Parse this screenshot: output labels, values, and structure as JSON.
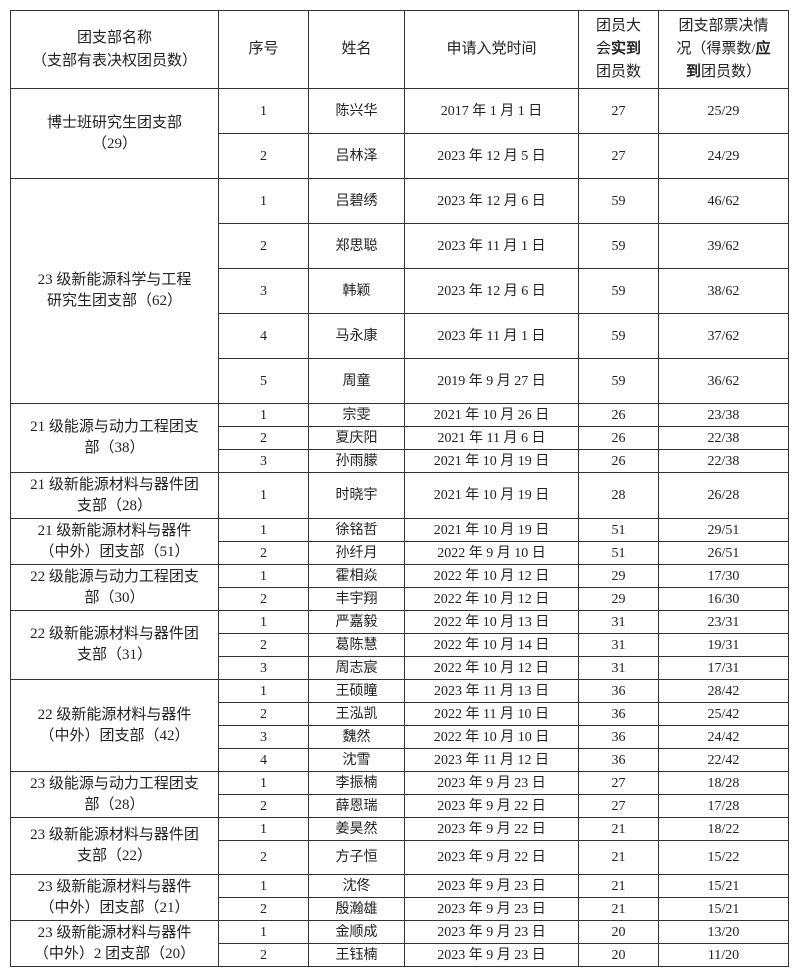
{
  "header": [
    [
      [
        {
          "text": "团支部名称"
        }
      ],
      [
        {
          "text": "（支部有表决权团员数）"
        }
      ]
    ],
    [
      [
        {
          "text": "序号"
        }
      ]
    ],
    [
      [
        {
          "text": "姓名"
        }
      ]
    ],
    [
      [
        {
          "text": "申请入党时间"
        }
      ]
    ],
    [
      [
        {
          "text": "团员大"
        }
      ],
      [
        {
          "text": "会"
        },
        {
          "text": "实到",
          "bold": true
        }
      ],
      [
        {
          "text": "团员数"
        }
      ]
    ],
    [
      [
        {
          "text": "团支部票决情"
        }
      ],
      [
        {
          "text": "况（得票数/"
        },
        {
          "text": "应",
          "bold": true
        }
      ],
      [
        {
          "text": "到",
          "bold": true
        },
        {
          "text": "团员数）"
        }
      ]
    ]
  ],
  "groups": [
    {
      "name": [
        "博士班研究生团支部",
        "（29）"
      ],
      "rows": [
        [
          1,
          "陈兴华",
          "2017 年 1 月 1 日",
          27,
          "25/29"
        ],
        [
          2,
          "吕林泽",
          "2023 年 12 月 5 日",
          27,
          "24/29"
        ]
      ]
    },
    {
      "name": [
        "23 级新能源科学与工程",
        "研究生团支部（62）"
      ],
      "rows": [
        [
          1,
          "吕碧绣",
          "2023 年 12 月 6 日",
          59,
          "46/62"
        ],
        [
          2,
          "郑思聪",
          "2023 年 11 月 1 日",
          59,
          "39/62"
        ],
        [
          3,
          "韩颖",
          "2023 年 12 月 6 日",
          59,
          "38/62"
        ],
        [
          4,
          "马永康",
          "2023 年 11 月 1 日",
          59,
          "37/62"
        ],
        [
          5,
          "周童",
          "2019 年 9 月 27 日",
          59,
          "36/62"
        ]
      ]
    },
    {
      "name": [
        "21 级能源与动力工程团支",
        "部（38）"
      ],
      "rows": [
        [
          1,
          "宗雯",
          "2021 年 10 月 26 日",
          26,
          "23/38"
        ],
        [
          2,
          "夏庆阳",
          "2021 年 11 月 6 日",
          26,
          "22/38"
        ],
        [
          3,
          "孙雨朦",
          "2021 年 10 月 19 日",
          26,
          "22/38"
        ]
      ]
    },
    {
      "name": [
        "21 级新能源材料与器件团",
        "支部（28）"
      ],
      "rows": [
        [
          1,
          "时晓宇",
          "2021 年 10 月 19 日",
          28,
          "26/28"
        ]
      ]
    },
    {
      "name": [
        "21 级新能源材料与器件",
        "（中外）团支部（51）"
      ],
      "rows": [
        [
          1,
          "徐铭哲",
          "2021 年 10 月 19 日",
          51,
          "29/51"
        ],
        [
          2,
          "孙纤月",
          "2022 年 9 月 10 日",
          51,
          "26/51"
        ]
      ]
    },
    {
      "name": [
        "22 级能源与动力工程团支",
        "部（30）"
      ],
      "rows": [
        [
          1,
          "霍相焱",
          "2022 年 10 月 12 日",
          29,
          "17/30"
        ],
        [
          2,
          "丰宇翔",
          "2022 年 10 月 12 日",
          29,
          "16/30"
        ]
      ]
    },
    {
      "name": [
        "22 级新能源材料与器件团",
        "支部（31）"
      ],
      "rows": [
        [
          1,
          "严嘉毅",
          "2022 年 10 月 13 日",
          31,
          "23/31"
        ],
        [
          2,
          "葛陈慧",
          "2022 年 10 月 14 日",
          31,
          "19/31"
        ],
        [
          3,
          "周志宸",
          "2022 年 10 月 12 日",
          31,
          "17/31"
        ]
      ]
    },
    {
      "name": [
        "22 级新能源材料与器件",
        "（中外）团支部（42）"
      ],
      "rows": [
        [
          1,
          "王硕瞳",
          "2023 年 11 月 13 日",
          36,
          "28/42"
        ],
        [
          2,
          "王泓凯",
          "2022 年 11 月 10 日",
          36,
          "25/42"
        ],
        [
          3,
          "魏然",
          "2022 年 10 月 10 日",
          36,
          "24/42"
        ],
        [
          4,
          "沈雪",
          "2023 年 11 月 12 日",
          36,
          "22/42"
        ]
      ]
    },
    {
      "name": [
        "23 级能源与动力工程团支",
        "部（28）"
      ],
      "rows": [
        [
          1,
          "李振楠",
          "2023 年 9 月 23 日",
          27,
          "18/28"
        ],
        [
          2,
          "薛恩瑞",
          "2023 年 9 月 22 日",
          27,
          "17/28"
        ]
      ]
    },
    {
      "name": [
        "23 级新能源材料与器件团",
        "支部（22）"
      ],
      "rows": [
        [
          1,
          "姜昊然",
          "2023 年 9 月 22 日",
          21,
          "18/22"
        ],
        [
          2,
          "方子恒",
          "2023 年 9 月 22 日",
          21,
          "15/22"
        ]
      ]
    },
    {
      "name": [
        "23 级新能源材料与器件",
        "（中外）团支部（21）"
      ],
      "rows": [
        [
          1,
          "沈佟",
          "2023 年 9 月 23 日",
          21,
          "15/21"
        ],
        [
          2,
          "殷瀚雄",
          "2023 年 9 月 23 日",
          21,
          "15/21"
        ]
      ]
    },
    {
      "name": [
        "23 级新能源材料与器件",
        "（中外）2 团支部（20）"
      ],
      "rows": [
        [
          1,
          "金顺成",
          "2023 年 9 月 23 日",
          20,
          "13/20"
        ],
        [
          2,
          "王钰楠",
          "2023 年 9 月 23 日",
          20,
          "11/20"
        ]
      ]
    }
  ]
}
